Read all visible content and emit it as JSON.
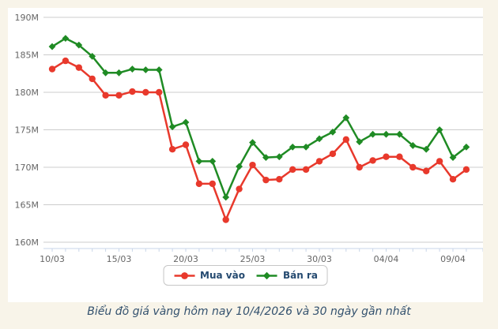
{
  "caption": "Biểu đồ giá vàng hôm nay 10/4/2026 và 30 ngày gần nhất",
  "chart_data": {
    "type": "line",
    "title": "",
    "categories": [
      "10/03",
      "11/03",
      "12/03",
      "13/03",
      "14/03",
      "15/03",
      "16/03",
      "17/03",
      "18/03",
      "19/03",
      "20/03",
      "21/03",
      "22/03",
      "23/03",
      "24/03",
      "25/03",
      "26/03",
      "27/03",
      "28/03",
      "29/03",
      "30/03",
      "31/03",
      "01/04",
      "02/04",
      "03/04",
      "04/04",
      "05/04",
      "06/04",
      "07/04",
      "08/04",
      "09/04",
      "10/04"
    ],
    "series": [
      {
        "name": "Mua vào",
        "color": "#E8392C",
        "marker": "circle",
        "values": [
          183.1,
          184.2,
          183.3,
          181.8,
          179.6,
          179.6,
          180.1,
          180.0,
          180.0,
          172.4,
          173.0,
          167.8,
          167.8,
          163.0,
          167.1,
          170.3,
          168.3,
          168.4,
          169.7,
          169.7,
          170.8,
          171.8,
          173.7,
          170.0,
          170.9,
          171.4,
          171.4,
          170.0,
          169.5,
          170.8,
          168.4,
          169.7
        ]
      },
      {
        "name": "Bán ra",
        "color": "#1F8B24",
        "marker": "diamond",
        "values": [
          186.1,
          187.2,
          186.3,
          184.8,
          182.6,
          182.6,
          183.1,
          183.0,
          183.0,
          175.4,
          176.0,
          170.8,
          170.8,
          166.0,
          170.1,
          173.3,
          171.3,
          171.4,
          172.7,
          172.7,
          173.8,
          174.7,
          176.6,
          173.4,
          174.4,
          174.4,
          174.4,
          172.9,
          172.4,
          175.0,
          171.3,
          172.7
        ]
      }
    ],
    "y_axis": {
      "tick_labels": [
        "190M",
        "185M",
        "180M",
        "175M",
        "170M",
        "165M",
        "160M"
      ],
      "tick_values": [
        190,
        185,
        180,
        175,
        170,
        165,
        160
      ],
      "unit": "M"
    },
    "x_axis": {
      "labels": [
        "10/03",
        "15/03",
        "20/03",
        "25/03",
        "30/03",
        "04/04",
        "09/04"
      ],
      "label_indices": [
        0,
        5,
        10,
        15,
        20,
        25,
        30
      ]
    },
    "ylim": [
      160,
      190
    ],
    "grid": "horizontal",
    "legend_position": "bottom",
    "colors": {
      "grid": "#cccccc",
      "axis_line": "#c9d6e8",
      "axis_text": "#666666",
      "legend_text": "#254a70",
      "caption_text": "#33516e",
      "background": "#f8f4e9",
      "plot_background": "#ffffff"
    }
  }
}
